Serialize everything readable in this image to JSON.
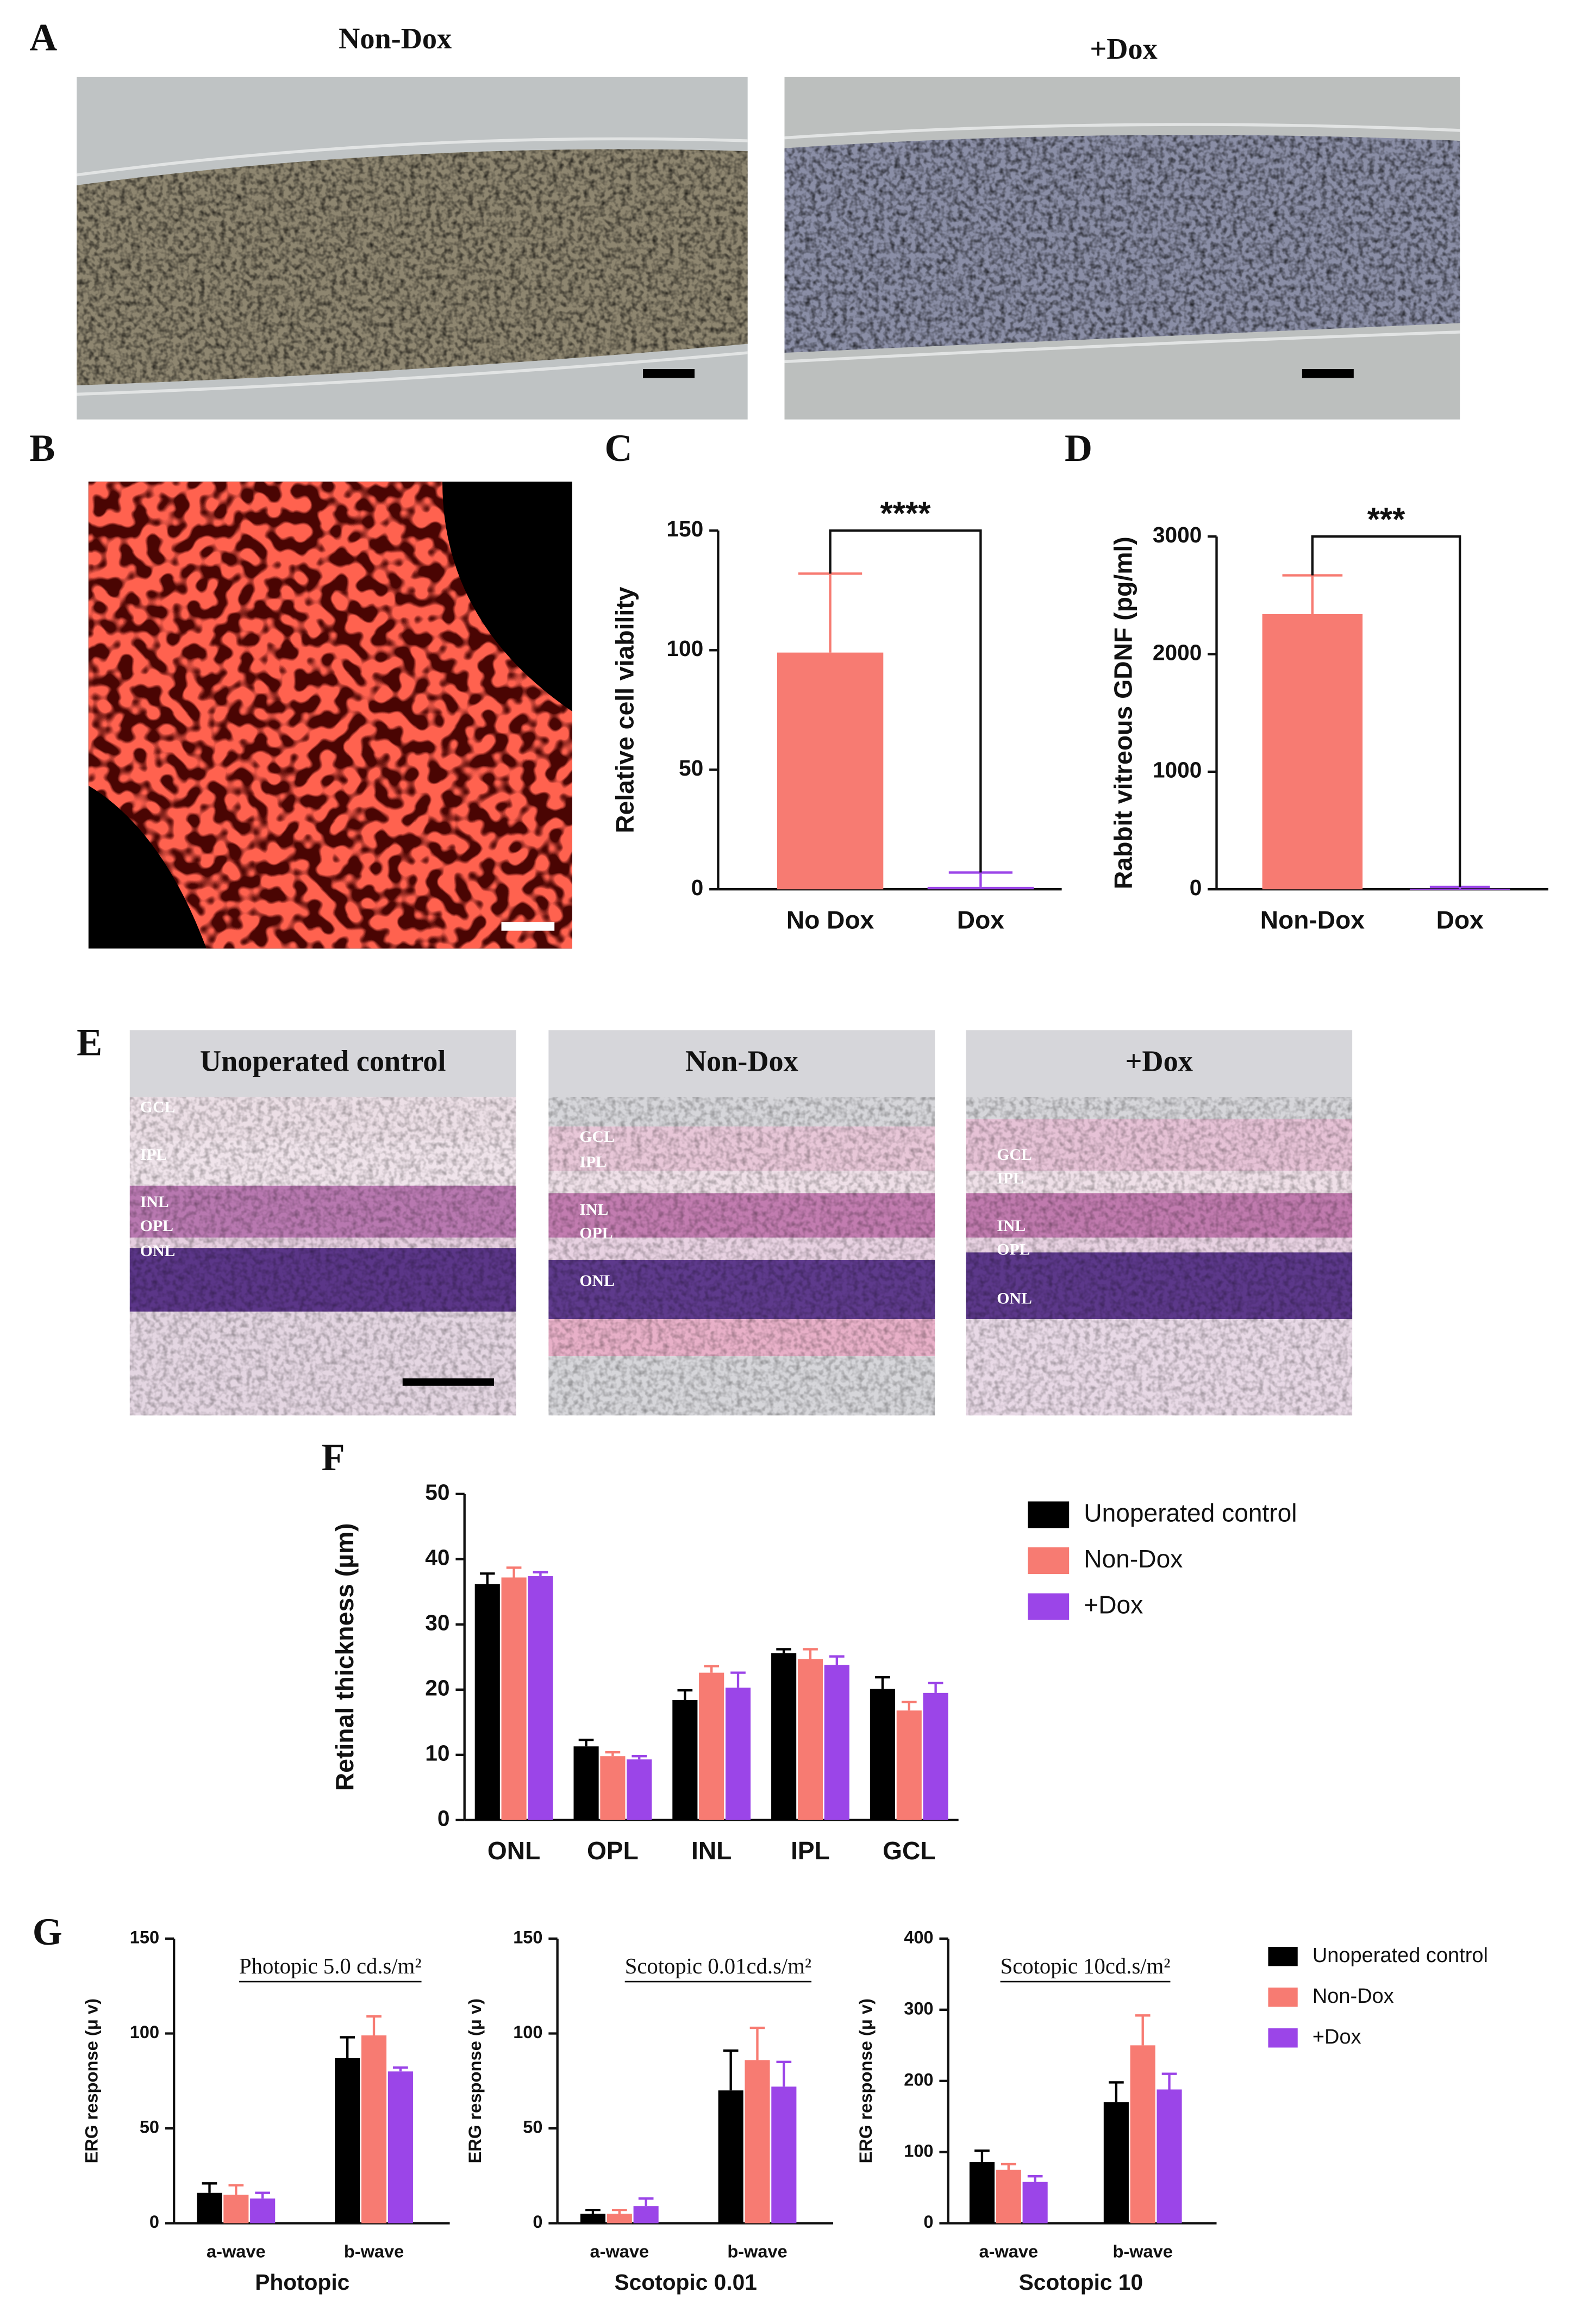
{
  "figure": {
    "panel_labels": [
      "A",
      "B",
      "C",
      "D",
      "E",
      "F",
      "G"
    ],
    "micrograph_titles": [
      "Non-Dox",
      "+Dox"
    ],
    "histology": [
      {
        "title": "Unoperated control",
        "layers": [
          "GCL",
          "IPL",
          "INL",
          "OPL",
          "ONL"
        ]
      },
      {
        "title": "Non-Dox",
        "layers": [
          "GCL",
          "IPL",
          "INL",
          "OPL",
          "ONL"
        ]
      },
      {
        "title": "+Dox",
        "layers": [
          "GCL",
          "IPL",
          "INL",
          "OPL",
          "ONL"
        ]
      }
    ]
  },
  "chart_data": [
    {
      "type": "bar",
      "ylabel": "Relative cell viability",
      "categories": [
        "No Dox",
        "Dox"
      ],
      "values": [
        99,
        1
      ],
      "errors": [
        33,
        6
      ],
      "colors": [
        "#f77b72",
        "#9b45e8"
      ],
      "ylim": [
        0,
        150
      ],
      "yticks": [
        0,
        50,
        100,
        150
      ],
      "significance": "****"
    },
    {
      "type": "bar",
      "ylabel": "Rabbit vitreous GDNF (pg/ml)",
      "categories": [
        "Non-Dox",
        "Dox"
      ],
      "values": [
        2340,
        5
      ],
      "errors": [
        330,
        15
      ],
      "colors": [
        "#f77b72",
        "#9b45e8"
      ],
      "ylim": [
        0,
        3000
      ],
      "yticks": [
        0,
        1000,
        2000,
        3000
      ],
      "significance": "***"
    },
    {
      "type": "grouped-bar",
      "ylabel": "Retinal thickness (µm)",
      "categories": [
        "ONL",
        "OPL",
        "INL",
        "IPL",
        "GCL"
      ],
      "ylim": [
        0,
        50
      ],
      "yticks": [
        0,
        10,
        20,
        30,
        40,
        50
      ],
      "legend": "right",
      "series": [
        {
          "name": "Unoperated control",
          "color": "#000000",
          "values": [
            36.2,
            11.3,
            18.4,
            25.6,
            20.1
          ],
          "errors": [
            1.6,
            1.0,
            1.5,
            0.6,
            1.8
          ]
        },
        {
          "name": "Non-Dox",
          "color": "#f77b72",
          "values": [
            37.2,
            9.8,
            22.6,
            24.7,
            16.8
          ],
          "errors": [
            1.5,
            0.6,
            1.0,
            1.5,
            1.3
          ]
        },
        {
          "name": "+Dox",
          "color": "#9b45e8",
          "values": [
            37.4,
            9.3,
            20.3,
            23.8,
            19.5
          ],
          "errors": [
            0.6,
            0.5,
            2.3,
            1.3,
            1.5
          ]
        }
      ]
    },
    {
      "type": "grouped-bar-panels",
      "legend": "right",
      "series": [
        {
          "name": "Unoperated control",
          "color": "#000000"
        },
        {
          "name": "Non-Dox",
          "color": "#f77b72"
        },
        {
          "name": "+Dox",
          "color": "#9b45e8"
        }
      ],
      "panels": [
        {
          "subtitle": "Photopic 5.0 cd.s/m²",
          "xlabel": "Photopic",
          "ylabel": "ERG response (μ v)",
          "categories": [
            "a-wave",
            "b-wave"
          ],
          "ylim": [
            0,
            150
          ],
          "yticks": [
            0,
            50,
            100,
            150
          ],
          "series": [
            {
              "values": [
                16,
                87
              ],
              "errors": [
                5,
                11
              ]
            },
            {
              "values": [
                15,
                99
              ],
              "errors": [
                5,
                10
              ]
            },
            {
              "values": [
                13,
                80
              ],
              "errors": [
                3,
                2
              ]
            }
          ]
        },
        {
          "subtitle": "Scotopic 0.01cd.s/m²",
          "xlabel": "Scotopic 0.01",
          "ylabel": "ERG response (μ v)",
          "categories": [
            "a-wave",
            "b-wave"
          ],
          "ylim": [
            0,
            150
          ],
          "yticks": [
            0,
            50,
            100,
            150
          ],
          "series": [
            {
              "values": [
                5,
                70
              ],
              "errors": [
                2,
                21
              ]
            },
            {
              "values": [
                5,
                86
              ],
              "errors": [
                2,
                17
              ]
            },
            {
              "values": [
                9,
                72
              ],
              "errors": [
                4,
                13
              ]
            }
          ]
        },
        {
          "subtitle": "Scotopic 10cd.s/m²",
          "xlabel": "Scotopic 10",
          "ylabel": "ERG response (μ v)",
          "categories": [
            "a-wave",
            "b-wave"
          ],
          "ylim": [
            0,
            400
          ],
          "yticks": [
            0,
            100,
            200,
            300,
            400
          ],
          "series": [
            {
              "values": [
                86,
                170
              ],
              "errors": [
                16,
                28
              ]
            },
            {
              "values": [
                75,
                250
              ],
              "errors": [
                8,
                42
              ]
            },
            {
              "values": [
                58,
                188
              ],
              "errors": [
                8,
                22
              ]
            }
          ]
        }
      ]
    }
  ]
}
